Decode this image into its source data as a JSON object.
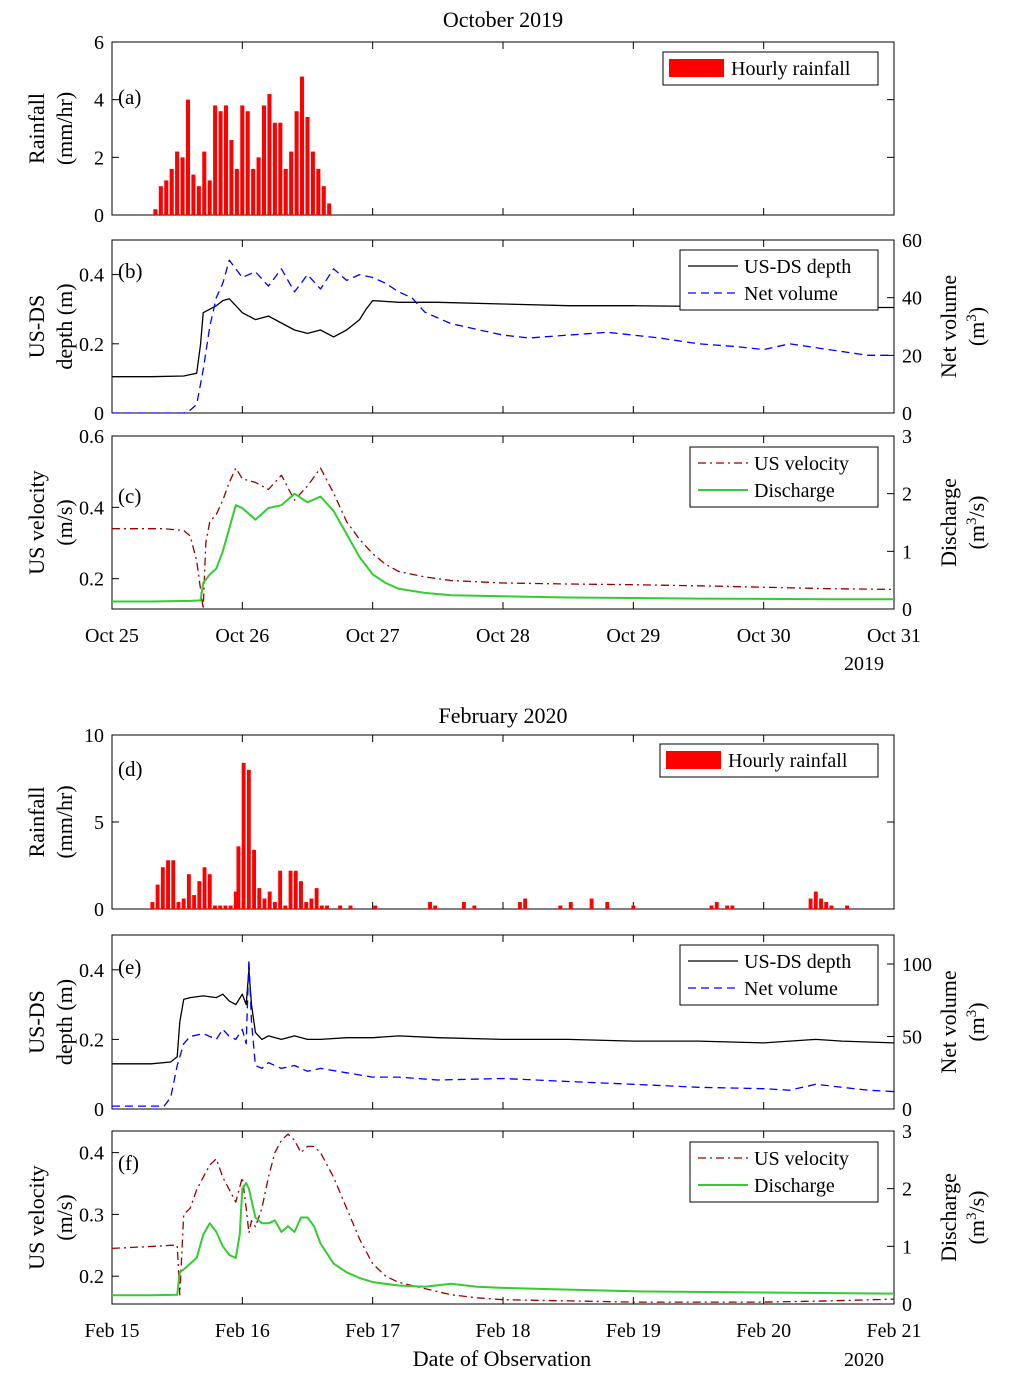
{
  "figure": {
    "xlabel": "Date of Observation",
    "colors": {
      "rainfall": "#ff0000",
      "depth": "#000000",
      "volume": "#0000ff",
      "velocity": "#990000",
      "discharge": "#33cc33"
    }
  },
  "chart_data": [
    {
      "id": "a",
      "type": "bar",
      "group_title": "October 2019",
      "panel_label": "(a)",
      "ylabel": [
        "Rainfall",
        "(mm/hr)"
      ],
      "ylim": [
        0,
        6
      ],
      "yticks": [
        0,
        2,
        4,
        6
      ],
      "xlim": [
        0,
        6
      ],
      "xticks": [
        0,
        1,
        2,
        3,
        4,
        5,
        6
      ],
      "xtick_labels": [
        "Oct 25",
        "Oct 26",
        "Oct 27",
        "Oct 28",
        "Oct 29",
        "Oct 30",
        "Oct 31"
      ],
      "year_label": "2019",
      "legend": [
        "Hourly rainfall"
      ],
      "series": [
        {
          "name": "Hourly rainfall",
          "x_start": 0.333,
          "step": 0.04167,
          "values": [
            0.2,
            1.0,
            1.2,
            1.6,
            2.2,
            2.0,
            4.0,
            1.4,
            1.0,
            2.2,
            1.2,
            3.8,
            3.6,
            3.8,
            2.6,
            1.6,
            3.8,
            3.6,
            1.6,
            2.0,
            3.8,
            4.2,
            3.2,
            3.2,
            1.6,
            2.2,
            3.6,
            4.8,
            3.4,
            2.2,
            1.6,
            1.0,
            0.4
          ]
        }
      ]
    },
    {
      "id": "b",
      "type": "line",
      "panel_label": "(b)",
      "ylabel": [
        "US-DS",
        "depth (m)"
      ],
      "ylim": [
        0,
        0.5
      ],
      "yticks": [
        0,
        0.2,
        0.4
      ],
      "ylabel_right": [
        "Net volume",
        "(m³)"
      ],
      "ylim_right": [
        0,
        60
      ],
      "yticks_right": [
        0,
        20,
        40,
        60
      ],
      "xlim": [
        0,
        6
      ],
      "legend": [
        "US-DS depth",
        "Net volume"
      ],
      "series": [
        {
          "name": "US-DS depth",
          "axis": "left",
          "style": "solid",
          "x": [
            0,
            0.3,
            0.55,
            0.65,
            0.68,
            0.7,
            0.75,
            0.8,
            0.85,
            0.9,
            0.95,
            1.0,
            1.1,
            1.2,
            1.3,
            1.4,
            1.5,
            1.6,
            1.7,
            1.8,
            1.9,
            1.95,
            2.0,
            2.2,
            2.5,
            3.0,
            3.5,
            4.0,
            4.5,
            5.0,
            5.5,
            6.0
          ],
          "y": [
            0.105,
            0.105,
            0.107,
            0.115,
            0.2,
            0.29,
            0.3,
            0.31,
            0.325,
            0.33,
            0.31,
            0.29,
            0.27,
            0.28,
            0.26,
            0.24,
            0.23,
            0.24,
            0.22,
            0.24,
            0.27,
            0.3,
            0.325,
            0.32,
            0.32,
            0.315,
            0.31,
            0.31,
            0.308,
            0.305,
            0.305,
            0.305
          ]
        },
        {
          "name": "Net volume",
          "axis": "right",
          "style": "dashed",
          "x": [
            0,
            0.5,
            0.55,
            0.6,
            0.65,
            0.7,
            0.75,
            0.8,
            0.85,
            0.9,
            0.95,
            1.0,
            1.1,
            1.2,
            1.3,
            1.4,
            1.5,
            1.6,
            1.7,
            1.8,
            1.9,
            2.0,
            2.1,
            2.2,
            2.3,
            2.4,
            2.5,
            2.6,
            2.8,
            3.0,
            3.2,
            3.5,
            3.8,
            4.0,
            4.2,
            4.5,
            4.8,
            5.0,
            5.2,
            5.5,
            5.8,
            6.0
          ],
          "y": [
            0,
            0,
            0,
            1,
            3,
            15,
            30,
            40,
            45,
            53,
            50,
            47,
            49,
            44,
            50,
            42,
            48,
            43,
            50,
            46,
            48,
            47,
            45,
            42,
            40,
            35,
            33,
            31,
            29,
            27,
            26,
            27,
            28,
            27,
            26,
            24,
            23,
            22,
            24,
            22,
            20,
            20
          ]
        }
      ]
    },
    {
      "id": "c",
      "type": "line",
      "panel_label": "(c)",
      "ylabel": [
        "US velocity",
        "(m/s)"
      ],
      "ylim": [
        0.115,
        0.6
      ],
      "yticks": [
        0.2,
        0.4,
        0.6
      ],
      "ylabel_right": [
        "Discharge",
        "(m³/s)"
      ],
      "ylim_right": [
        0,
        3
      ],
      "yticks_right": [
        0,
        1,
        2,
        3
      ],
      "xlim": [
        0,
        6
      ],
      "legend": [
        "US velocity",
        "Discharge"
      ],
      "series": [
        {
          "name": "US velocity",
          "axis": "left",
          "style": "dashdot",
          "x": [
            0,
            0.2,
            0.4,
            0.55,
            0.6,
            0.65,
            0.7,
            0.72,
            0.75,
            0.8,
            0.85,
            0.9,
            0.95,
            1.0,
            1.1,
            1.2,
            1.3,
            1.4,
            1.5,
            1.6,
            1.7,
            1.8,
            1.9,
            2.0,
            2.1,
            2.2,
            2.4,
            2.6,
            3.0,
            3.5,
            4.0,
            4.5,
            5.0,
            5.5,
            6.0
          ],
          "y": [
            0.34,
            0.34,
            0.34,
            0.335,
            0.32,
            0.25,
            0.115,
            0.3,
            0.36,
            0.38,
            0.42,
            0.47,
            0.51,
            0.48,
            0.47,
            0.45,
            0.49,
            0.42,
            0.46,
            0.51,
            0.44,
            0.36,
            0.31,
            0.27,
            0.24,
            0.22,
            0.205,
            0.195,
            0.188,
            0.185,
            0.183,
            0.18,
            0.176,
            0.172,
            0.17
          ]
        },
        {
          "name": "Discharge",
          "axis": "right",
          "style": "solid",
          "x": [
            0,
            0.3,
            0.6,
            0.68,
            0.7,
            0.75,
            0.8,
            0.85,
            0.9,
            0.95,
            1.0,
            1.1,
            1.2,
            1.3,
            1.4,
            1.5,
            1.6,
            1.7,
            1.8,
            1.9,
            2.0,
            2.1,
            2.2,
            2.4,
            2.6,
            3.0,
            3.5,
            4.0,
            4.5,
            5.0,
            5.5,
            6.0
          ],
          "y": [
            0.13,
            0.13,
            0.14,
            0.15,
            0.45,
            0.6,
            0.7,
            1.0,
            1.4,
            1.8,
            1.75,
            1.55,
            1.75,
            1.8,
            2.0,
            1.85,
            1.95,
            1.7,
            1.3,
            0.9,
            0.6,
            0.45,
            0.35,
            0.28,
            0.24,
            0.22,
            0.2,
            0.19,
            0.18,
            0.175,
            0.17,
            0.17
          ]
        }
      ]
    },
    {
      "id": "d",
      "type": "bar",
      "group_title": "February 2020",
      "panel_label": "(d)",
      "ylabel": [
        "Rainfall",
        "(mm/hr)"
      ],
      "ylim": [
        0,
        10
      ],
      "yticks": [
        0,
        5,
        10
      ],
      "xlim": [
        0,
        6
      ],
      "xticks": [
        0,
        1,
        2,
        3,
        4,
        5,
        6
      ],
      "xtick_labels": [
        "Feb 15",
        "Feb 16",
        "Feb 17",
        "Feb 18",
        "Feb 19",
        "Feb 20",
        "Feb 21"
      ],
      "year_label": "2020",
      "legend": [
        "Hourly rainfall"
      ],
      "series": [
        {
          "name": "Hourly rainfall",
          "bar_width": 0.03,
          "x": [
            0.31,
            0.35,
            0.39,
            0.43,
            0.47,
            0.51,
            0.55,
            0.59,
            0.63,
            0.67,
            0.71,
            0.75,
            0.79,
            0.83,
            0.87,
            0.91,
            0.95,
            0.97,
            1.01,
            1.05,
            1.09,
            1.13,
            1.17,
            1.21,
            1.25,
            1.29,
            1.33,
            1.37,
            1.41,
            1.45,
            1.49,
            1.53,
            1.57,
            1.61,
            1.65,
            1.75,
            1.83,
            2.02,
            2.44,
            2.48,
            2.7,
            2.78,
            3.13,
            3.17,
            3.44,
            3.52,
            3.68,
            3.8,
            4.0,
            4.6,
            4.64,
            4.72,
            4.76,
            5.36,
            5.4,
            5.44,
            5.48,
            5.52,
            5.64
          ],
          "values": [
            0.4,
            1.4,
            2.4,
            2.8,
            2.8,
            0.4,
            0.6,
            2.0,
            0.8,
            1.6,
            2.4,
            2.0,
            0.2,
            0.2,
            0.2,
            0.2,
            1.0,
            3.6,
            8.4,
            8.0,
            3.4,
            1.2,
            0.6,
            1.0,
            0.4,
            2.2,
            0.2,
            2.2,
            2.2,
            1.6,
            0.4,
            0.6,
            1.2,
            0.2,
            0.2,
            0.2,
            0.2,
            0.2,
            0.4,
            0.2,
            0.4,
            0.2,
            0.4,
            0.6,
            0.2,
            0.4,
            0.6,
            0.4,
            0.2,
            0.2,
            0.4,
            0.2,
            0.2,
            0.6,
            1.0,
            0.6,
            0.4,
            0.2,
            0.2
          ]
        }
      ]
    },
    {
      "id": "e",
      "type": "line",
      "panel_label": "(e)",
      "ylabel": [
        "US-DS",
        "depth (m)"
      ],
      "ylim": [
        0,
        0.5
      ],
      "yticks": [
        0,
        0.2,
        0.4
      ],
      "ylabel_right": [
        "Net volume",
        "(m³)"
      ],
      "ylim_right": [
        0,
        120
      ],
      "yticks_right": [
        0,
        50,
        100
      ],
      "xlim": [
        0,
        6
      ],
      "legend": [
        "US-DS depth",
        "Net volume"
      ],
      "series": [
        {
          "name": "US-DS depth",
          "axis": "left",
          "style": "solid",
          "x": [
            0,
            0.3,
            0.45,
            0.5,
            0.52,
            0.55,
            0.6,
            0.7,
            0.8,
            0.85,
            0.9,
            0.95,
            1.0,
            1.03,
            1.05,
            1.07,
            1.1,
            1.15,
            1.2,
            1.3,
            1.4,
            1.5,
            1.6,
            1.8,
            2.0,
            2.2,
            2.5,
            3.0,
            3.5,
            4.0,
            4.5,
            5.0,
            5.4,
            5.6,
            6.0
          ],
          "y": [
            0.13,
            0.13,
            0.135,
            0.15,
            0.25,
            0.315,
            0.32,
            0.325,
            0.32,
            0.33,
            0.31,
            0.3,
            0.33,
            0.3,
            0.4,
            0.3,
            0.22,
            0.2,
            0.21,
            0.2,
            0.21,
            0.2,
            0.2,
            0.205,
            0.205,
            0.21,
            0.205,
            0.2,
            0.2,
            0.195,
            0.195,
            0.19,
            0.2,
            0.195,
            0.19
          ]
        },
        {
          "name": "Net volume",
          "axis": "right",
          "style": "dashed",
          "x": [
            0,
            0.4,
            0.45,
            0.5,
            0.55,
            0.6,
            0.7,
            0.8,
            0.85,
            0.9,
            0.95,
            1.0,
            1.03,
            1.05,
            1.07,
            1.1,
            1.15,
            1.2,
            1.3,
            1.4,
            1.5,
            1.6,
            1.8,
            2.0,
            2.2,
            2.5,
            3.0,
            3.5,
            4.0,
            4.5,
            5.0,
            5.2,
            5.4,
            5.6,
            5.8,
            6.0
          ],
          "y": [
            2,
            2,
            8,
            30,
            45,
            50,
            52,
            48,
            55,
            50,
            48,
            55,
            45,
            103,
            60,
            30,
            28,
            32,
            28,
            30,
            26,
            28,
            25,
            22,
            22,
            20,
            21,
            19,
            17,
            15,
            14,
            13,
            17,
            15,
            13,
            12
          ]
        }
      ]
    },
    {
      "id": "f",
      "type": "line",
      "panel_label": "(f)",
      "ylabel": [
        "US velocity",
        "(m/s)"
      ],
      "ylim": [
        0.155,
        0.435
      ],
      "yticks": [
        0.2,
        0.3,
        0.4
      ],
      "ylabel_right": [
        "Discharge",
        "(m³/s)"
      ],
      "ylim_right": [
        0,
        3
      ],
      "yticks_right": [
        0,
        1,
        2,
        3
      ],
      "xlim": [
        0,
        6
      ],
      "xtick_labels": [
        "Feb 15",
        "Feb 16",
        "Feb 17",
        "Feb 18",
        "Feb 19",
        "Feb 20",
        "Feb 21"
      ],
      "year_label": "2020",
      "legend": [
        "US velocity",
        "Discharge"
      ],
      "series": [
        {
          "name": "US velocity",
          "axis": "left",
          "style": "dashdot",
          "x": [
            0,
            0.3,
            0.45,
            0.5,
            0.52,
            0.55,
            0.6,
            0.65,
            0.7,
            0.75,
            0.8,
            0.85,
            0.9,
            0.95,
            1.0,
            1.03,
            1.05,
            1.07,
            1.1,
            1.15,
            1.2,
            1.25,
            1.3,
            1.35,
            1.4,
            1.45,
            1.5,
            1.55,
            1.6,
            1.7,
            1.8,
            1.9,
            2.0,
            2.1,
            2.2,
            2.4,
            2.6,
            2.8,
            3.0,
            3.5,
            4.0,
            4.5,
            5.0,
            5.5,
            6.0
          ],
          "y": [
            0.245,
            0.248,
            0.25,
            0.25,
            0.17,
            0.3,
            0.31,
            0.34,
            0.36,
            0.38,
            0.39,
            0.36,
            0.34,
            0.32,
            0.36,
            0.31,
            0.27,
            0.29,
            0.28,
            0.31,
            0.36,
            0.4,
            0.42,
            0.43,
            0.42,
            0.4,
            0.41,
            0.41,
            0.4,
            0.36,
            0.31,
            0.26,
            0.22,
            0.2,
            0.19,
            0.18,
            0.17,
            0.165,
            0.162,
            0.16,
            0.158,
            0.158,
            0.158,
            0.16,
            0.163
          ]
        },
        {
          "name": "Discharge",
          "axis": "right",
          "style": "solid",
          "x": [
            0,
            0.3,
            0.5,
            0.52,
            0.55,
            0.6,
            0.65,
            0.7,
            0.75,
            0.8,
            0.85,
            0.9,
            0.95,
            0.98,
            1.0,
            1.03,
            1.05,
            1.07,
            1.1,
            1.15,
            1.2,
            1.25,
            1.3,
            1.35,
            1.4,
            1.45,
            1.5,
            1.55,
            1.6,
            1.7,
            1.8,
            1.9,
            2.0,
            2.2,
            2.4,
            2.6,
            2.8,
            3.0,
            3.5,
            4.0,
            5.0,
            6.0
          ],
          "y": [
            0.15,
            0.15,
            0.16,
            0.55,
            0.6,
            0.7,
            0.8,
            1.2,
            1.4,
            1.25,
            1.0,
            0.85,
            0.8,
            1.2,
            2.0,
            2.1,
            2.0,
            1.8,
            1.5,
            1.4,
            1.4,
            1.45,
            1.25,
            1.35,
            1.25,
            1.5,
            1.5,
            1.35,
            1.05,
            0.7,
            0.55,
            0.45,
            0.38,
            0.32,
            0.3,
            0.35,
            0.3,
            0.28,
            0.25,
            0.22,
            0.2,
            0.18
          ]
        }
      ]
    }
  ]
}
